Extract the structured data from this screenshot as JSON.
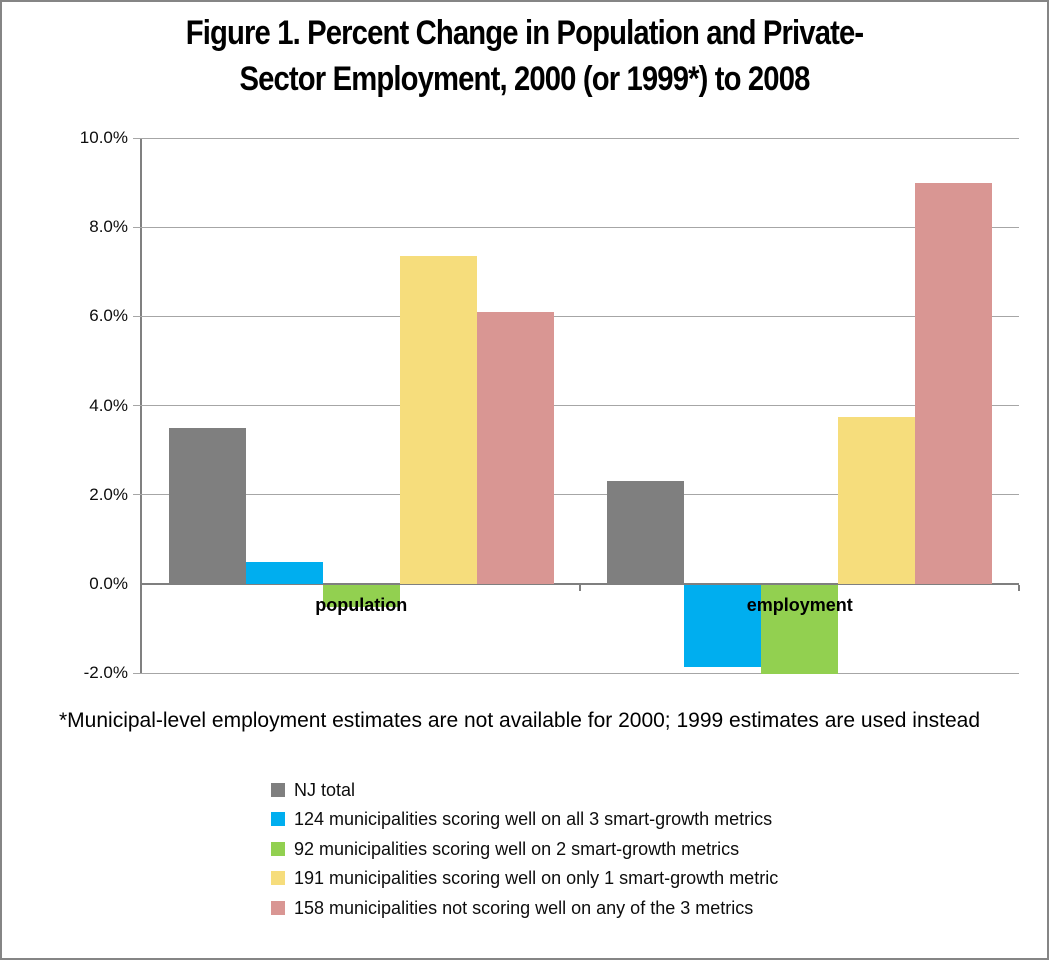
{
  "title": {
    "line1": "Figure 1.  Percent Change in Population and Private-",
    "line2": "Sector Employment, 2000 (or 1999*) to 2008"
  },
  "footnote": "*Municipal-level employment estimates are not available for 2000; 1999 estimates are used instead",
  "colors": {
    "gridline": "#a6a6a6",
    "axis": "#7f7f7f",
    "frame": "#858585"
  },
  "chart_data": {
    "type": "bar",
    "title": "Figure 1.  Percent Change in Population and Private-Sector Employment, 2000 (or 1999*) to 2008",
    "xlabel": "",
    "ylabel": "",
    "categories": [
      "population",
      "employment"
    ],
    "series": [
      {
        "name": "NJ total",
        "color": "#7f7f7f",
        "values": [
          3.5,
          2.3
        ]
      },
      {
        "name": "124 municipalities scoring well on all 3 smart-growth metrics",
        "color": "#00aeef",
        "values": [
          0.5,
          -1.85
        ]
      },
      {
        "name": "92 municipalities scoring well on 2 smart-growth metrics",
        "color": "#92d050",
        "values": [
          -0.5,
          -2.0
        ]
      },
      {
        "name": "191 municipalities scoring well on only 1 smart-growth metric",
        "color": "#f6dd7c",
        "values": [
          7.35,
          3.75
        ]
      },
      {
        "name": "158 municipalities not scoring well on any of the 3 metrics",
        "color": "#d99693",
        "values": [
          6.1,
          9.0
        ]
      }
    ],
    "ylim": [
      -2,
      10
    ],
    "yticks": [
      {
        "value": 10,
        "label": "10.0%"
      },
      {
        "value": 8,
        "label": "8.0%"
      },
      {
        "value": 6,
        "label": "6.0%"
      },
      {
        "value": 4,
        "label": "4.0%"
      },
      {
        "value": 2,
        "label": "2.0%"
      },
      {
        "value": 0,
        "label": "0.0%"
      },
      {
        "value": -2,
        "label": "-2.0%"
      }
    ],
    "grid": true,
    "legend_position": "bottom-left"
  }
}
